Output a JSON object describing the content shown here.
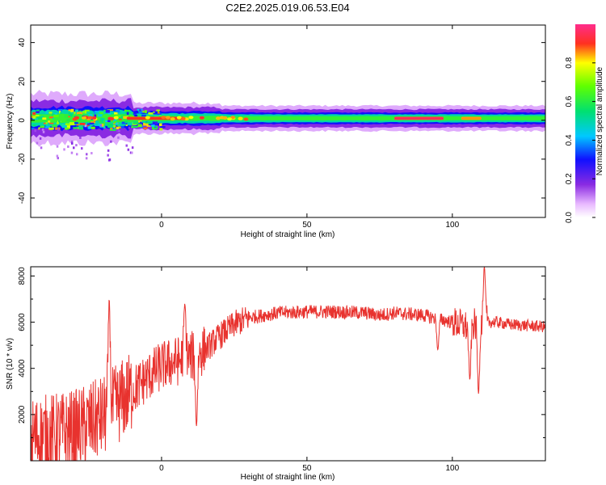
{
  "title": "C2E2.2025.019.06.53.E04",
  "chart_data": [
    {
      "type": "heatmap",
      "xlabel": "Height of straight line (km)",
      "ylabel": "Frequency (Hz)",
      "xlim": [
        -45,
        132
      ],
      "ylim": [
        -50,
        49
      ],
      "xticks": [
        0,
        50,
        100
      ],
      "yticks": [
        -40,
        -20,
        0,
        20,
        40
      ],
      "colorbar": {
        "label": "Normalized spectral amplitude",
        "range": [
          0.0,
          1.0
        ],
        "ticks": [
          "0.0",
          "0.2",
          "0.4",
          "0.6",
          "0.8"
        ],
        "colormap": "rainbow"
      },
      "band_center_hz": 1,
      "band_halfwidth_hz": 2,
      "bright_segments": [
        {
          "x": [
            -12,
            8
          ],
          "level": 0.9
        },
        {
          "x": [
            80,
            97
          ],
          "level": 0.95
        },
        {
          "x": [
            103,
            110
          ],
          "level": 0.85
        }
      ]
    },
    {
      "type": "line",
      "xlabel": "Height of straight line (km)",
      "ylabel": "SNR (10 * v/v)",
      "xlim": [
        -45,
        132
      ],
      "ylim": [
        0,
        8400
      ],
      "xticks": [
        0,
        50,
        100
      ],
      "yticks": [
        2000,
        4000,
        6000,
        8000
      ],
      "color": "#e8322e",
      "trend_x": [
        -45,
        -30,
        -20,
        -12,
        -5,
        0,
        5,
        10,
        15,
        20,
        25,
        30,
        40,
        50,
        60,
        70,
        75,
        80,
        90,
        100,
        105,
        110,
        115,
        120,
        132
      ],
      "trend_y": [
        1000,
        1300,
        1900,
        2800,
        3600,
        4100,
        4300,
        4500,
        4800,
        5400,
        5900,
        6200,
        6400,
        6450,
        6450,
        6400,
        6300,
        6400,
        6300,
        6000,
        5800,
        6000,
        6000,
        5900,
        5800
      ],
      "features": [
        {
          "x": -18,
          "peak": 7000
        },
        {
          "x": 8,
          "peak": 6800
        },
        {
          "x": 12,
          "dip": 1500
        },
        {
          "x": 95,
          "dip": 4800
        },
        {
          "x": 106,
          "dip": 3500
        },
        {
          "x": 109,
          "dip": 2900
        },
        {
          "x": 111,
          "peak": 8400
        }
      ]
    }
  ]
}
